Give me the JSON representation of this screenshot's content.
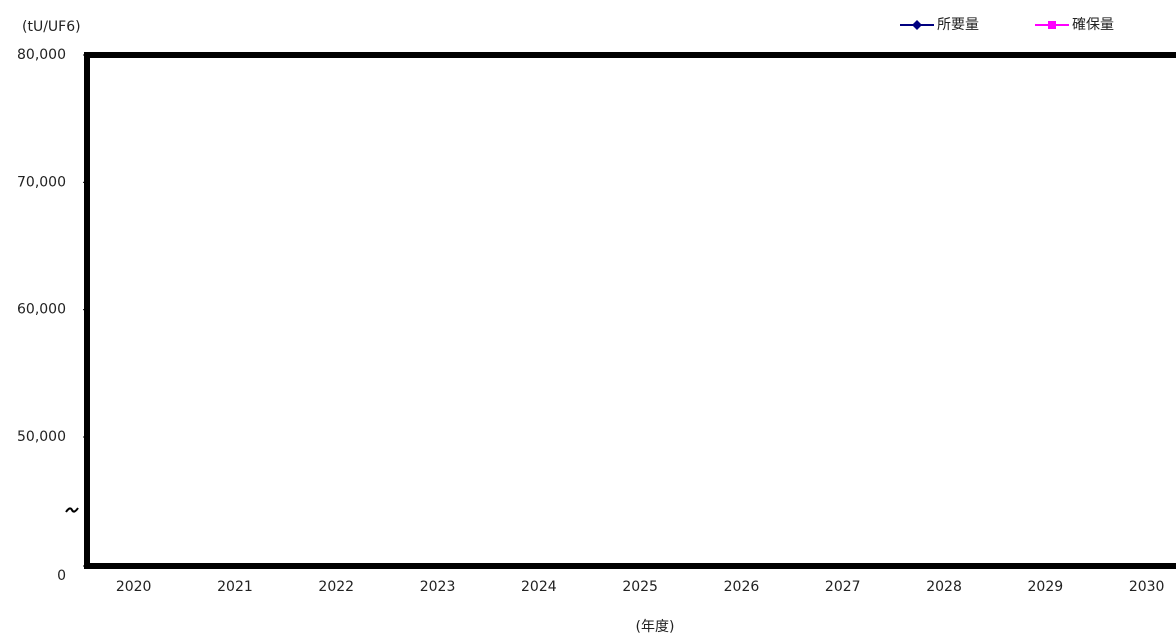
{
  "chart_data": {
    "type": "line",
    "y_axis_label": "(tU/UF6)",
    "x_axis_label": "(年度)",
    "categories": [
      "2020",
      "2021",
      "2022",
      "2023",
      "2024",
      "2025",
      "2026",
      "2027",
      "2028",
      "2029",
      "2030"
    ],
    "series": [
      {
        "name": "所要量",
        "color": "#000080",
        "marker": "diamond",
        "values": [
          null,
          null,
          null,
          null,
          null,
          null,
          null,
          null,
          null,
          null,
          null
        ]
      },
      {
        "name": "確保量",
        "color": "#ff00ff",
        "marker": "square",
        "values": [
          null,
          null,
          null,
          null,
          null,
          null,
          null,
          null,
          null,
          null,
          null
        ]
      }
    ],
    "ylim": [
      0,
      80000
    ],
    "yticks": [
      0,
      {
        "value": 50000,
        "label": "50,000"
      },
      {
        "value": 60000,
        "label": "60,000"
      },
      {
        "value": 70000,
        "label": "70,000"
      },
      {
        "value": 80000,
        "label": "80,000"
      }
    ],
    "y_break": true,
    "legend": "top-right"
  }
}
